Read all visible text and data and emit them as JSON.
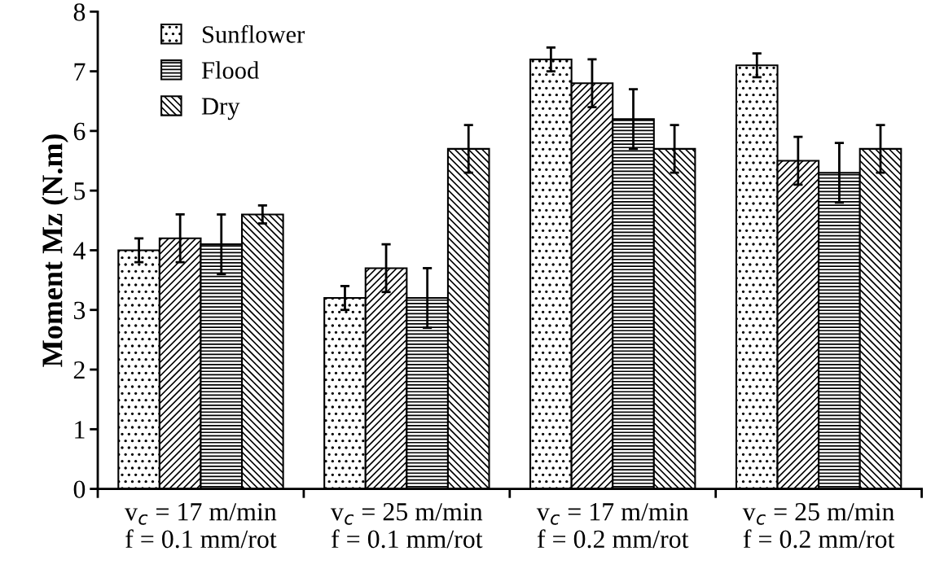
{
  "chart_data": {
    "type": "bar",
    "ylabel": "Moment Mz (N.m)",
    "categories": [
      "v$_{c}$ = 17 m/min\nf = 0.1 mm/rot",
      "v$_{c}$ = 25 m/min\nf = 0.1 mm/rot",
      "v$_{c}$ = 17 m/min\nf = 0.2 mm/rot",
      "v$_{c}$ = 25 m/min\nf = 0.2 mm/rot"
    ],
    "series": [
      {
        "name": "Sunflower",
        "color": "#000000",
        "values": [
          4.0,
          3.2,
          7.2,
          7.1
        ],
        "errors": [
          0.2,
          0.2,
          0.2,
          0.2
        ]
      },
      {
        "color": "#000000",
        "values": [
          4.2,
          3.7,
          6.8,
          5.5
        ],
        "errors": [
          0.4,
          0.4,
          0.4,
          0.4
        ]
      },
      {
        "name": "Flood",
        "color": "#000000",
        "values": [
          4.1,
          3.2,
          6.2,
          5.3
        ],
        "errors": [
          0.5,
          0.5,
          0.5,
          0.5
        ]
      },
      {
        "name": "Dry",
        "color": "#000000",
        "values": [
          4.6,
          5.7,
          5.7,
          5.7
        ],
        "errors": [
          0.15,
          0.4,
          0.4,
          0.4
        ]
      }
    ],
    "ylim": [
      0,
      8
    ],
    "yticks": [
      0,
      1,
      2,
      3,
      4,
      5,
      6,
      7,
      8
    ],
    "grid": false,
    "legend": "top left"
  }
}
